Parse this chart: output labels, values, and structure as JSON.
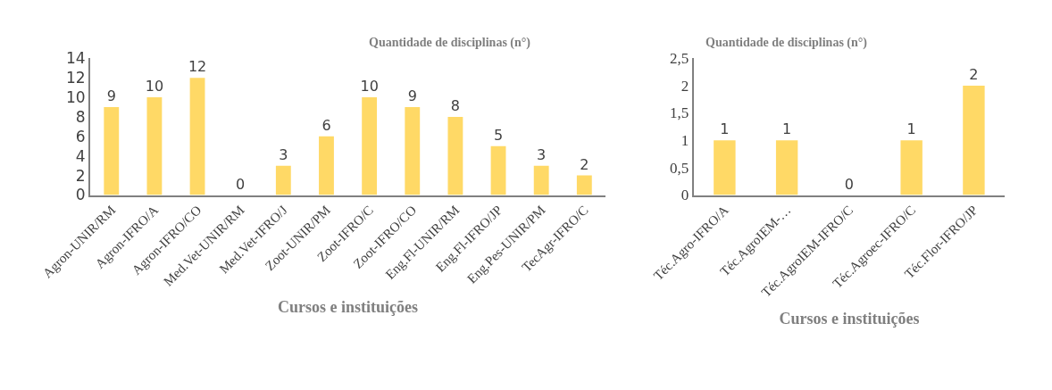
{
  "chart_data": [
    {
      "type": "bar",
      "title": "Quantidade de disciplinas (n°)",
      "xlabel": "Cursos e instituições",
      "categories": [
        "Agron-UNIR/RM",
        "Agron-IFRO/A",
        "Agron-IFRO/CO",
        "Med.Vet-UNIR/RM",
        "Med.Vet-IFRO/J",
        "Zoot-UNIR/PM",
        "Zoot-IFRO/C",
        "Zoot-IFRO/CO",
        "Eng.Fl-UNIR/RM",
        "Eng.Fl-IFRO/JP",
        "Eng.Pes-UNIR/PM",
        "TecAgr-IFRO/C"
      ],
      "values": [
        9,
        10,
        12,
        0,
        3,
        6,
        10,
        9,
        8,
        5,
        3,
        2
      ],
      "color": "#ffd966",
      "ylim": [
        0,
        14
      ],
      "yticks": [
        0,
        2,
        4,
        6,
        8,
        10,
        12,
        14
      ],
      "data_labels": true
    },
    {
      "type": "bar",
      "title": "Quantidade de disciplinas (n°)",
      "xlabel": "Cursos e instituições",
      "categories": [
        "Téc.Agro-IFRO/A",
        "Téc.AgroIEM-…",
        "Téc.AgroIEM-IFRO/C",
        "Téc.Agroec-IFRO/C",
        "Téc.Flor-IFRO/JP"
      ],
      "values": [
        1,
        1,
        0,
        1,
        2
      ],
      "color": "#ffd966",
      "ylim": [
        0,
        2.5
      ],
      "yticks": [
        0,
        {
          "value": 0.5,
          "label": "0,5"
        },
        1,
        {
          "value": 1.5,
          "label": "1,5"
        },
        2,
        {
          "value": 2.5,
          "label": "2,5"
        }
      ],
      "data_labels": true
    }
  ]
}
